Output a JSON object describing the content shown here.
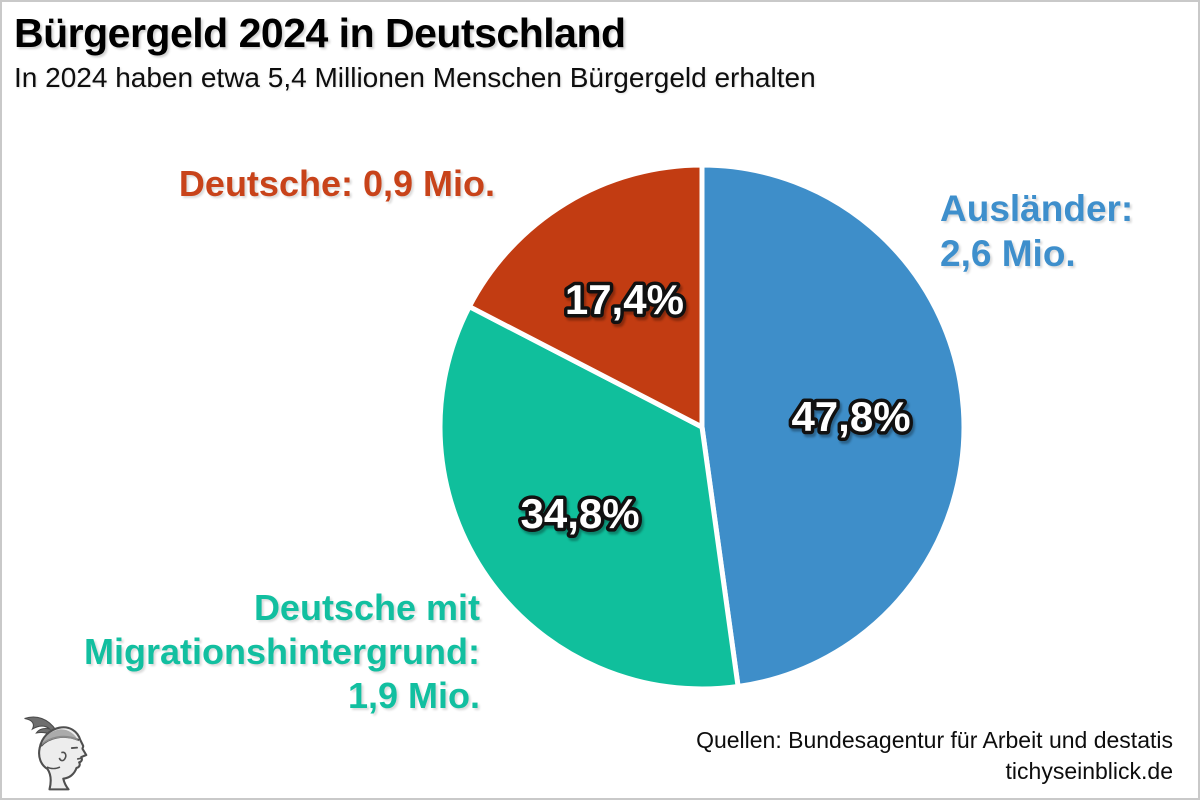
{
  "frame": {
    "background": "#ffffff",
    "border_color": "#c9c9c9"
  },
  "header": {
    "title": "Bürgergeld 2024 in Deutschland",
    "subtitle": "In 2024 haben etwa 5,4 Millionen Menschen Bürgergeld erhalten"
  },
  "footer": {
    "source_line1": "Quellen: Bundesagentur für Arbeit und destatis",
    "source_line2": "tichyseinblick.de",
    "logo_icon": "hermes-head-logo"
  },
  "chart_data": {
    "type": "pie",
    "title": "Bürgergeld 2024 in Deutschland",
    "subtitle": "In 2024 haben etwa 5,4 Millionen Menschen Bürgergeld erhalten",
    "total_mio": 5.4,
    "unit": "Mio. Menschen",
    "direction": "clockwise",
    "start_angle_deg": 0,
    "legend_position": "callout-labels",
    "percent_label_style": {
      "fill": "#ffffff",
      "outline": "#111111"
    },
    "slices": [
      {
        "key": "auslaender",
        "label": "Ausländer",
        "value_mio": 2.6,
        "percent": 47.8,
        "percent_label": "47,8%",
        "color": "#3E8EC9",
        "label_color": "#3E8FCC",
        "callout": {
          "lines": [
            "Ausländer:",
            "2,6 Mio."
          ]
        }
      },
      {
        "key": "deutsche-mit-migrationshintergrund",
        "label": "Deutsche mit Migrationshintergrund",
        "value_mio": 1.9,
        "percent": 34.8,
        "percent_label": "34,8%",
        "color": "#10BF9C",
        "label_color": "#12BFA0",
        "callout": {
          "lines": [
            "Deutsche mit",
            "Migrationshintergrund:",
            "1,9 Mio."
          ]
        }
      },
      {
        "key": "deutsche",
        "label": "Deutsche",
        "value_mio": 0.9,
        "percent": 17.4,
        "percent_label": "17,4%",
        "color": "#C23C12",
        "label_color": "#C8431A",
        "callout": {
          "lines": [
            "Deutsche: 0,9 Mio."
          ]
        }
      }
    ]
  }
}
